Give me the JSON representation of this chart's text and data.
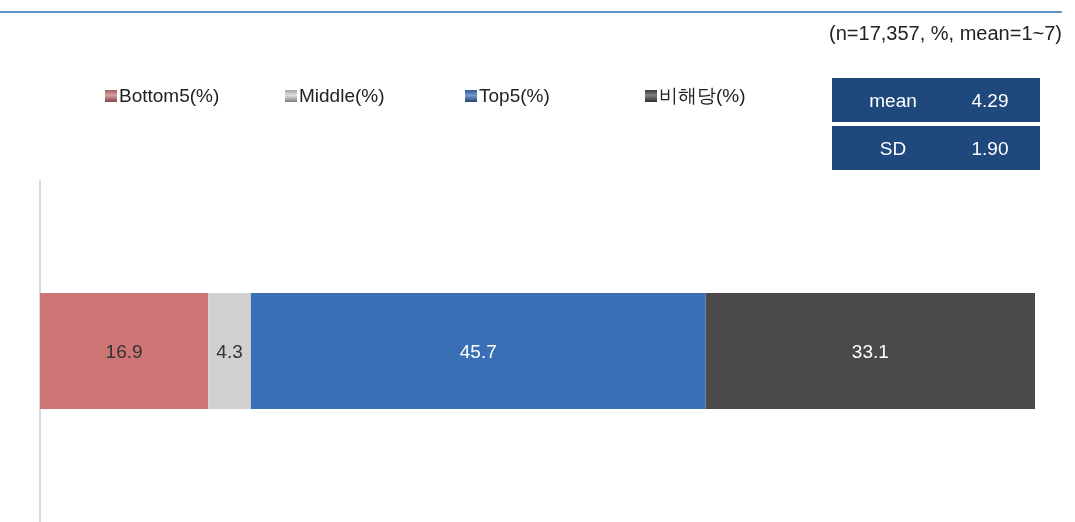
{
  "chart_data": {
    "type": "bar",
    "orientation": "horizontal",
    "stacked": true,
    "categories": [
      null
    ],
    "xlim": [
      0,
      100
    ],
    "data_labels": true,
    "legend": "top",
    "annotations": [
      "(n=17,357,  %,  mean=1~7)",
      "mean",
      "4.29",
      "SD",
      "1.90"
    ],
    "series": [
      {
        "name": "Bottom5(%)",
        "color": "#cd7575",
        "values": [
          16.9
        ]
      },
      {
        "name": "Middle(%)",
        "color": "#d0d0d0",
        "values": [
          4.3
        ]
      },
      {
        "name": "Top5(%)",
        "color": "#3a6fb5",
        "values": [
          45.7
        ]
      },
      {
        "name": "비해당(%)",
        "color": "#4a4a4a",
        "values": [
          33.1
        ]
      }
    ]
  }
}
